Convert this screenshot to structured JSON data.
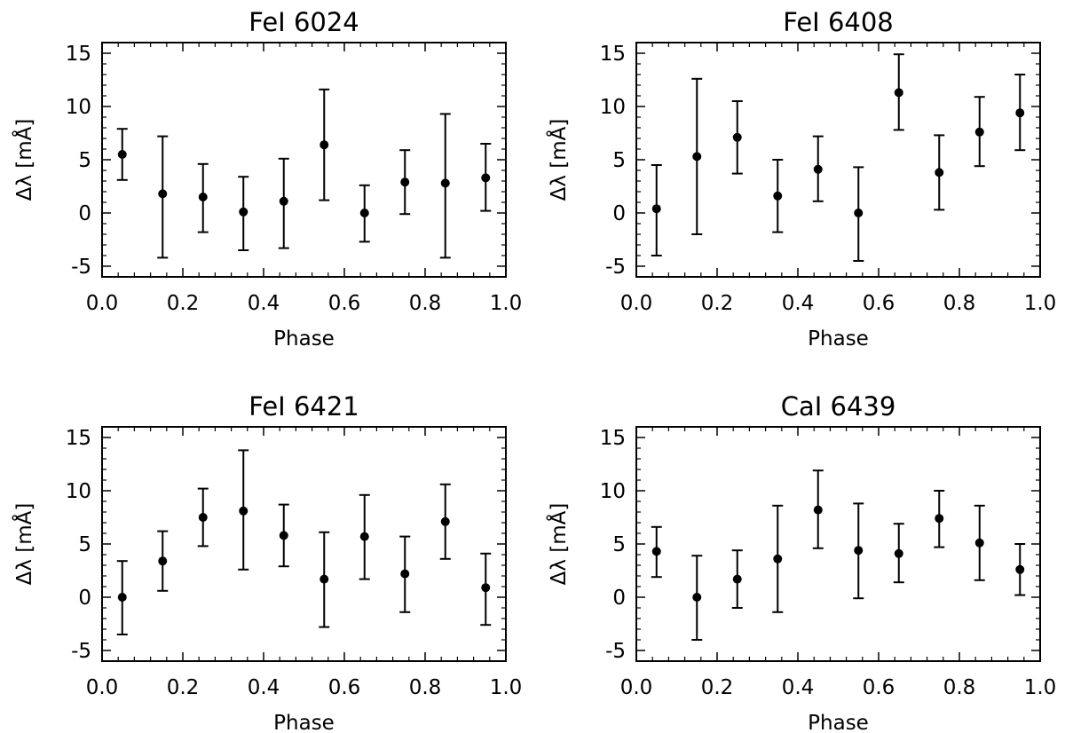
{
  "chart_data": [
    {
      "type": "scatter",
      "title": "FeI 6024",
      "xlabel": "Phase",
      "ylabel": "Δλ [mÅ]",
      "xlim": [
        0.0,
        1.0
      ],
      "ylim": [
        -6,
        16
      ],
      "xticks": [
        "0.0",
        "0.2",
        "0.4",
        "0.6",
        "0.8",
        "1.0"
      ],
      "yticks": [
        "-5",
        "0",
        "5",
        "10",
        "15"
      ],
      "x": [
        0.05,
        0.15,
        0.25,
        0.35,
        0.45,
        0.55,
        0.65,
        0.75,
        0.85,
        0.95
      ],
      "y": [
        5.5,
        1.8,
        1.5,
        0.1,
        1.1,
        6.4,
        0.0,
        2.9,
        2.8,
        3.3
      ],
      "err_low": [
        3.1,
        -4.2,
        -1.8,
        -3.5,
        -3.3,
        1.2,
        -2.7,
        -0.1,
        -4.2,
        0.2
      ],
      "err_high": [
        7.9,
        7.2,
        4.6,
        3.4,
        5.1,
        11.6,
        2.6,
        5.9,
        9.3,
        6.5
      ]
    },
    {
      "type": "scatter",
      "title": "FeI 6408",
      "xlabel": "Phase",
      "ylabel": "Δλ [mÅ]",
      "xlim": [
        0.0,
        1.0
      ],
      "ylim": [
        -6,
        16
      ],
      "xticks": [
        "0.0",
        "0.2",
        "0.4",
        "0.6",
        "0.8",
        "1.0"
      ],
      "yticks": [
        "-5",
        "0",
        "5",
        "10",
        "15"
      ],
      "x": [
        0.05,
        0.15,
        0.25,
        0.35,
        0.45,
        0.55,
        0.65,
        0.75,
        0.85,
        0.95
      ],
      "y": [
        0.4,
        5.3,
        7.1,
        1.6,
        4.1,
        0.0,
        11.3,
        3.8,
        7.6,
        9.4
      ],
      "err_low": [
        -4.0,
        -2.0,
        3.7,
        -1.8,
        1.1,
        -4.5,
        7.8,
        0.3,
        4.4,
        5.9
      ],
      "err_high": [
        4.5,
        12.6,
        10.5,
        5.0,
        7.2,
        4.3,
        14.9,
        7.3,
        10.9,
        13.0
      ]
    },
    {
      "type": "scatter",
      "title": "FeI 6421",
      "xlabel": "Phase",
      "ylabel": "Δλ [mÅ]",
      "xlim": [
        0.0,
        1.0
      ],
      "ylim": [
        -6,
        16
      ],
      "xticks": [
        "0.0",
        "0.2",
        "0.4",
        "0.6",
        "0.8",
        "1.0"
      ],
      "yticks": [
        "-5",
        "0",
        "5",
        "10",
        "15"
      ],
      "x": [
        0.05,
        0.15,
        0.25,
        0.35,
        0.45,
        0.55,
        0.65,
        0.75,
        0.85,
        0.95
      ],
      "y": [
        0.0,
        3.4,
        7.5,
        8.1,
        5.8,
        1.7,
        5.7,
        2.2,
        7.1,
        0.9
      ],
      "err_low": [
        -3.5,
        0.6,
        4.8,
        2.6,
        2.9,
        -2.8,
        1.7,
        -1.4,
        3.6,
        -2.6
      ],
      "err_high": [
        3.4,
        6.2,
        10.2,
        13.8,
        8.7,
        6.1,
        9.6,
        5.7,
        10.6,
        4.1
      ]
    },
    {
      "type": "scatter",
      "title": "CaI 6439",
      "xlabel": "Phase",
      "ylabel": "Δλ [mÅ]",
      "xlim": [
        0.0,
        1.0
      ],
      "ylim": [
        -6,
        16
      ],
      "xticks": [
        "0.0",
        "0.2",
        "0.4",
        "0.6",
        "0.8",
        "1.0"
      ],
      "yticks": [
        "-5",
        "0",
        "5",
        "10",
        "15"
      ],
      "x": [
        0.05,
        0.15,
        0.25,
        0.35,
        0.45,
        0.55,
        0.65,
        0.75,
        0.85,
        0.95
      ],
      "y": [
        4.3,
        0.0,
        1.7,
        3.6,
        8.2,
        4.4,
        4.1,
        7.4,
        5.1,
        2.6
      ],
      "err_low": [
        1.9,
        -4.0,
        -1.0,
        -1.4,
        4.6,
        -0.1,
        1.4,
        4.7,
        1.6,
        0.2
      ],
      "err_high": [
        6.6,
        3.9,
        4.4,
        8.6,
        11.9,
        8.8,
        6.9,
        10.0,
        8.6,
        5.0
      ]
    }
  ]
}
